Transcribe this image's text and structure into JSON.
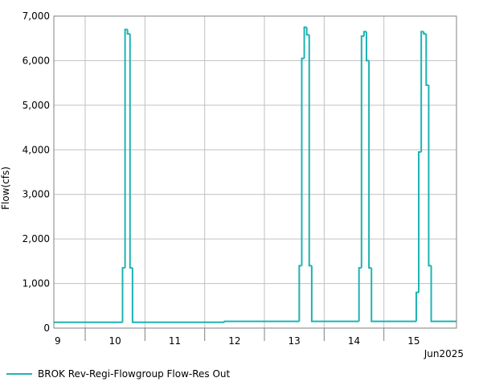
{
  "chart_data": {
    "type": "line",
    "step": "post",
    "ylabel": "Flow(cfs)",
    "xlabel": "Jun2025",
    "xlim": [
      9.475,
      16.215
    ],
    "xticks": [
      {
        "value": 9,
        "label": "9"
      },
      {
        "value": 10,
        "label": "10"
      },
      {
        "value": 11,
        "label": "11"
      },
      {
        "value": 12,
        "label": "12"
      },
      {
        "value": 13,
        "label": "13"
      },
      {
        "value": 14,
        "label": "14"
      },
      {
        "value": 15,
        "label": "15"
      }
    ],
    "ylim": [
      0,
      7000
    ],
    "yticks": [
      0,
      {
        "value": 1000,
        "label": "1,000"
      },
      {
        "value": 2000,
        "label": "2,000"
      },
      {
        "value": 3000,
        "label": "3,000"
      },
      {
        "value": 4000,
        "label": "4,000"
      },
      {
        "value": 5000,
        "label": "5,000"
      },
      {
        "value": 6000,
        "label": "6,000"
      },
      {
        "value": 7000,
        "label": "7,000"
      }
    ],
    "grid": true,
    "x": [
      9.475,
      10.625,
      10.667,
      10.708,
      10.75,
      10.792,
      12.333,
      13.583,
      13.625,
      13.667,
      13.708,
      13.75,
      13.792,
      14.583,
      14.625,
      14.667,
      14.708,
      14.75,
      14.792,
      15.542,
      15.583,
      15.625,
      15.667,
      15.708,
      15.75,
      15.792,
      16.215
    ],
    "series": [
      {
        "name": "BROK Rev-Regi-Flowgroup Flow-Res Out",
        "color": "#1fb3b3",
        "values": [
          130,
          1350,
          6700,
          6600,
          1350,
          130,
          150,
          1400,
          6050,
          6750,
          6580,
          1400,
          150,
          1350,
          6550,
          6650,
          6000,
          1350,
          150,
          800,
          3950,
          6650,
          6600,
          5450,
          1400,
          150,
          150
        ]
      }
    ]
  }
}
